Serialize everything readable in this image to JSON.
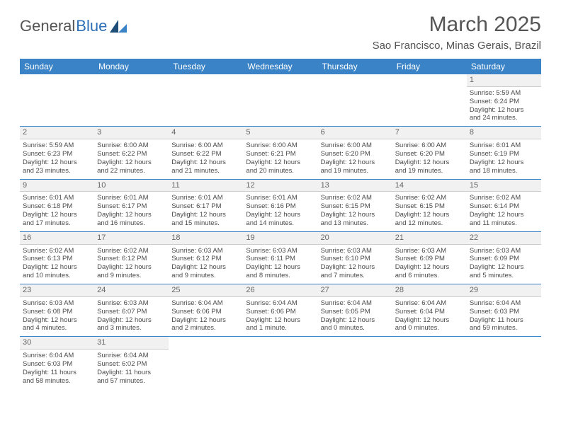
{
  "logo": {
    "text1": "General",
    "text2": "Blue"
  },
  "title": "March 2025",
  "location": "Sao Francisco, Minas Gerais, Brazil",
  "colors": {
    "header_bg": "#3a83c6",
    "header_text": "#ffffff",
    "divider": "#3a83c6",
    "daynum_bg": "#f1f1f1",
    "text": "#4a4a4a"
  },
  "day_headers": [
    "Sunday",
    "Monday",
    "Tuesday",
    "Wednesday",
    "Thursday",
    "Friday",
    "Saturday"
  ],
  "weeks": [
    [
      null,
      null,
      null,
      null,
      null,
      null,
      {
        "n": "1",
        "sr": "Sunrise: 5:59 AM",
        "ss": "Sunset: 6:24 PM",
        "d1": "Daylight: 12 hours",
        "d2": "and 24 minutes."
      }
    ],
    [
      {
        "n": "2",
        "sr": "Sunrise: 5:59 AM",
        "ss": "Sunset: 6:23 PM",
        "d1": "Daylight: 12 hours",
        "d2": "and 23 minutes."
      },
      {
        "n": "3",
        "sr": "Sunrise: 6:00 AM",
        "ss": "Sunset: 6:22 PM",
        "d1": "Daylight: 12 hours",
        "d2": "and 22 minutes."
      },
      {
        "n": "4",
        "sr": "Sunrise: 6:00 AM",
        "ss": "Sunset: 6:22 PM",
        "d1": "Daylight: 12 hours",
        "d2": "and 21 minutes."
      },
      {
        "n": "5",
        "sr": "Sunrise: 6:00 AM",
        "ss": "Sunset: 6:21 PM",
        "d1": "Daylight: 12 hours",
        "d2": "and 20 minutes."
      },
      {
        "n": "6",
        "sr": "Sunrise: 6:00 AM",
        "ss": "Sunset: 6:20 PM",
        "d1": "Daylight: 12 hours",
        "d2": "and 19 minutes."
      },
      {
        "n": "7",
        "sr": "Sunrise: 6:00 AM",
        "ss": "Sunset: 6:20 PM",
        "d1": "Daylight: 12 hours",
        "d2": "and 19 minutes."
      },
      {
        "n": "8",
        "sr": "Sunrise: 6:01 AM",
        "ss": "Sunset: 6:19 PM",
        "d1": "Daylight: 12 hours",
        "d2": "and 18 minutes."
      }
    ],
    [
      {
        "n": "9",
        "sr": "Sunrise: 6:01 AM",
        "ss": "Sunset: 6:18 PM",
        "d1": "Daylight: 12 hours",
        "d2": "and 17 minutes."
      },
      {
        "n": "10",
        "sr": "Sunrise: 6:01 AM",
        "ss": "Sunset: 6:17 PM",
        "d1": "Daylight: 12 hours",
        "d2": "and 16 minutes."
      },
      {
        "n": "11",
        "sr": "Sunrise: 6:01 AM",
        "ss": "Sunset: 6:17 PM",
        "d1": "Daylight: 12 hours",
        "d2": "and 15 minutes."
      },
      {
        "n": "12",
        "sr": "Sunrise: 6:01 AM",
        "ss": "Sunset: 6:16 PM",
        "d1": "Daylight: 12 hours",
        "d2": "and 14 minutes."
      },
      {
        "n": "13",
        "sr": "Sunrise: 6:02 AM",
        "ss": "Sunset: 6:15 PM",
        "d1": "Daylight: 12 hours",
        "d2": "and 13 minutes."
      },
      {
        "n": "14",
        "sr": "Sunrise: 6:02 AM",
        "ss": "Sunset: 6:15 PM",
        "d1": "Daylight: 12 hours",
        "d2": "and 12 minutes."
      },
      {
        "n": "15",
        "sr": "Sunrise: 6:02 AM",
        "ss": "Sunset: 6:14 PM",
        "d1": "Daylight: 12 hours",
        "d2": "and 11 minutes."
      }
    ],
    [
      {
        "n": "16",
        "sr": "Sunrise: 6:02 AM",
        "ss": "Sunset: 6:13 PM",
        "d1": "Daylight: 12 hours",
        "d2": "and 10 minutes."
      },
      {
        "n": "17",
        "sr": "Sunrise: 6:02 AM",
        "ss": "Sunset: 6:12 PM",
        "d1": "Daylight: 12 hours",
        "d2": "and 9 minutes."
      },
      {
        "n": "18",
        "sr": "Sunrise: 6:03 AM",
        "ss": "Sunset: 6:12 PM",
        "d1": "Daylight: 12 hours",
        "d2": "and 9 minutes."
      },
      {
        "n": "19",
        "sr": "Sunrise: 6:03 AM",
        "ss": "Sunset: 6:11 PM",
        "d1": "Daylight: 12 hours",
        "d2": "and 8 minutes."
      },
      {
        "n": "20",
        "sr": "Sunrise: 6:03 AM",
        "ss": "Sunset: 6:10 PM",
        "d1": "Daylight: 12 hours",
        "d2": "and 7 minutes."
      },
      {
        "n": "21",
        "sr": "Sunrise: 6:03 AM",
        "ss": "Sunset: 6:09 PM",
        "d1": "Daylight: 12 hours",
        "d2": "and 6 minutes."
      },
      {
        "n": "22",
        "sr": "Sunrise: 6:03 AM",
        "ss": "Sunset: 6:09 PM",
        "d1": "Daylight: 12 hours",
        "d2": "and 5 minutes."
      }
    ],
    [
      {
        "n": "23",
        "sr": "Sunrise: 6:03 AM",
        "ss": "Sunset: 6:08 PM",
        "d1": "Daylight: 12 hours",
        "d2": "and 4 minutes."
      },
      {
        "n": "24",
        "sr": "Sunrise: 6:03 AM",
        "ss": "Sunset: 6:07 PM",
        "d1": "Daylight: 12 hours",
        "d2": "and 3 minutes."
      },
      {
        "n": "25",
        "sr": "Sunrise: 6:04 AM",
        "ss": "Sunset: 6:06 PM",
        "d1": "Daylight: 12 hours",
        "d2": "and 2 minutes."
      },
      {
        "n": "26",
        "sr": "Sunrise: 6:04 AM",
        "ss": "Sunset: 6:06 PM",
        "d1": "Daylight: 12 hours",
        "d2": "and 1 minute."
      },
      {
        "n": "27",
        "sr": "Sunrise: 6:04 AM",
        "ss": "Sunset: 6:05 PM",
        "d1": "Daylight: 12 hours",
        "d2": "and 0 minutes."
      },
      {
        "n": "28",
        "sr": "Sunrise: 6:04 AM",
        "ss": "Sunset: 6:04 PM",
        "d1": "Daylight: 12 hours",
        "d2": "and 0 minutes."
      },
      {
        "n": "29",
        "sr": "Sunrise: 6:04 AM",
        "ss": "Sunset: 6:03 PM",
        "d1": "Daylight: 11 hours",
        "d2": "and 59 minutes."
      }
    ],
    [
      {
        "n": "30",
        "sr": "Sunrise: 6:04 AM",
        "ss": "Sunset: 6:03 PM",
        "d1": "Daylight: 11 hours",
        "d2": "and 58 minutes."
      },
      {
        "n": "31",
        "sr": "Sunrise: 6:04 AM",
        "ss": "Sunset: 6:02 PM",
        "d1": "Daylight: 11 hours",
        "d2": "and 57 minutes."
      },
      null,
      null,
      null,
      null,
      null
    ]
  ]
}
